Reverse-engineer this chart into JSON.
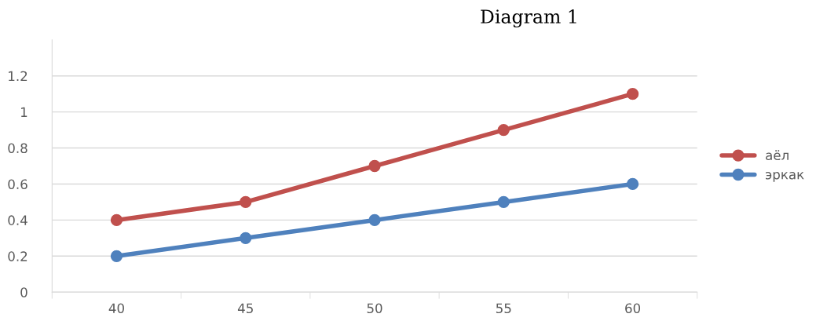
{
  "chart_data": {
    "type": "line",
    "title": "Diagram 1",
    "categories": [
      "40",
      "45",
      "50",
      "55",
      "60"
    ],
    "series": [
      {
        "name": "аёл",
        "color": "#c0504d",
        "values": [
          0.4,
          0.5,
          0.7,
          0.9,
          1.1
        ]
      },
      {
        "name": "эркак",
        "color": "#4f81bd",
        "values": [
          0.2,
          0.3,
          0.4,
          0.5,
          0.6
        ]
      }
    ],
    "ylim": [
      0,
      1.4
    ],
    "yticks": [
      0,
      0.2,
      0.4,
      0.6,
      0.8,
      1,
      1.2
    ],
    "grid": "y",
    "legend": "right",
    "marker": "circle",
    "line_style": "solid"
  }
}
